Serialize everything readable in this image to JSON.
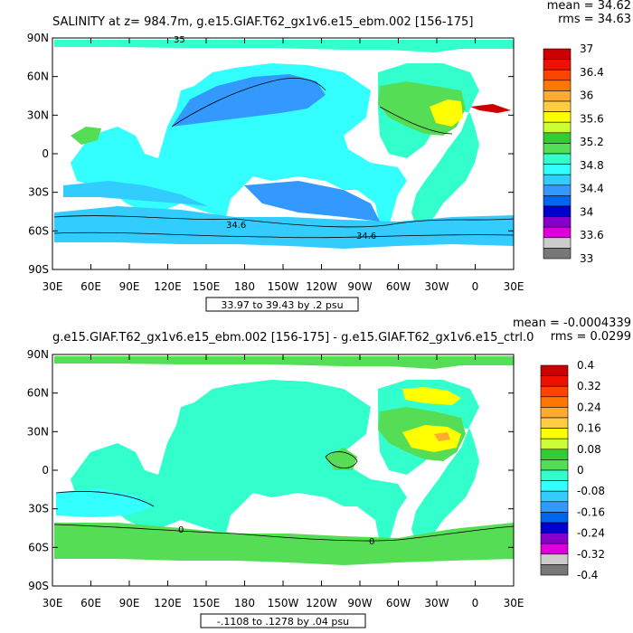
{
  "panels": [
    {
      "title": "SALINITY at z= 984.7m, g.e15.GIAF.T62_gx1v6.e15_ebm.002 [156-175]",
      "mean_text": "mean = 34.62",
      "rms_text": "rms = 34.63",
      "range_text": "33.97 to 39.43 by .2 psu"
    },
    {
      "title": "g.e15.GIAF.T62_gx1v6.e15_ebm.002 [156-175] - g.e15.GIAF.T62_gx1v6.e15_ctrl.0",
      "mean_text": "mean = -0.0004339",
      "rms_text": "rms = 0.0299",
      "range_text": "-.1108 to .1278 by .04 psu"
    }
  ],
  "chart_data": [
    {
      "type": "heatmap",
      "variable": "SALINITY",
      "depth": "984.7m",
      "xlabel": "",
      "ylabel": "",
      "x_ticks": [
        "30E",
        "60E",
        "90E",
        "120E",
        "150E",
        "180",
        "150W",
        "120W",
        "90W",
        "60W",
        "30W",
        "0",
        "30E"
      ],
      "y_ticks": [
        "90N",
        "60N",
        "30N",
        "0",
        "30S",
        "60S",
        "90S"
      ],
      "colorbar_levels": [
        "37",
        "36.4",
        "36",
        "35.6",
        "35.2",
        "34.8",
        "34.4",
        "34",
        "33.6",
        "33"
      ],
      "colorbar_colors": [
        "#cc0000",
        "#ee1100",
        "#ff4400",
        "#ff7700",
        "#ffaa33",
        "#ffcc44",
        "#ffff00",
        "#ccff33",
        "#33cc33",
        "#55dd55",
        "#33ffcc",
        "#33ffff",
        "#33ccff",
        "#3399ff",
        "#0066ee",
        "#0000cc",
        "#8800cc",
        "#dd00dd",
        "#cccccc",
        "#777777"
      ],
      "contour_labels": [
        "35",
        "34.6",
        "34.6"
      ],
      "mean": 34.62,
      "rms": 34.63,
      "range": [
        33.97,
        39.43
      ],
      "interval": 0.2,
      "units": "psu"
    },
    {
      "type": "heatmap",
      "variable": "SALINITY difference",
      "xlabel": "",
      "ylabel": "",
      "x_ticks": [
        "30E",
        "60E",
        "90E",
        "120E",
        "150E",
        "180",
        "150W",
        "120W",
        "90W",
        "60W",
        "30W",
        "0",
        "30E"
      ],
      "y_ticks": [
        "90N",
        "60N",
        "30N",
        "0",
        "30S",
        "60S",
        "90S"
      ],
      "colorbar_levels": [
        "0.4",
        "0.32",
        "0.24",
        "0.16",
        "0.08",
        "0",
        "-0.08",
        "-0.16",
        "-0.24",
        "-0.32",
        "-0.4"
      ],
      "colorbar_colors": [
        "#cc0000",
        "#ee1100",
        "#ff4400",
        "#ff7700",
        "#ffaa33",
        "#ffcc44",
        "#ffff00",
        "#ccff33",
        "#33cc33",
        "#55dd55",
        "#33ffcc",
        "#33ffff",
        "#33ccff",
        "#3399ff",
        "#0066ee",
        "#0000cc",
        "#8800cc",
        "#dd00dd",
        "#cccccc",
        "#777777"
      ],
      "contour_labels": [
        "0",
        "0"
      ],
      "mean": -0.0004339,
      "rms": 0.0299,
      "range": [
        -0.1108,
        0.1278
      ],
      "interval": 0.04,
      "units": "psu"
    }
  ],
  "colors": {
    "cyan": "#33ffcc",
    "lightblue": "#33ccff",
    "midblue": "#3399ff",
    "green": "#55dd55",
    "yellow": "#ffff00",
    "orange": "#ffaa33",
    "red": "#cc0000"
  }
}
